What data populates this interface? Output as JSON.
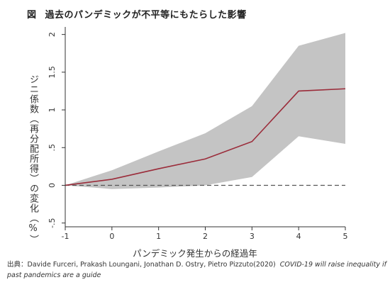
{
  "figure": {
    "number": "図",
    "title": "過去のパンデミックが不平等にもたらした影響"
  },
  "chart_data": {
    "type": "line",
    "x": [
      -1,
      0,
      1,
      2,
      3,
      4,
      5
    ],
    "series": [
      {
        "values": [
          0,
          0.08,
          0.22,
          0.35,
          0.58,
          1.25,
          1.28
        ]
      }
    ],
    "band": {
      "upper": [
        0,
        0.2,
        0.45,
        0.69,
        1.05,
        1.85,
        2.02
      ],
      "lower": [
        0,
        -0.05,
        -0.03,
        0.0,
        0.11,
        0.65,
        0.55
      ]
    },
    "baseline": 0,
    "xlabel": "パンデミック発生からの経過年",
    "ylabel": "ジニ係数（再分配所得）の変化（%）",
    "xticks": [
      "-1",
      "0",
      "1",
      "2",
      "3",
      "4",
      "5"
    ],
    "yticks": [
      "-.5",
      "0",
      ".5",
      "1",
      "1.5",
      "2"
    ],
    "ytick_values": [
      -0.5,
      0,
      0.5,
      1,
      1.5,
      2
    ],
    "xlim": [
      -1,
      5
    ],
    "ylim": [
      -0.55,
      2.1
    ],
    "colors": {
      "line": "#9b2c3a",
      "band": "#c4c4c4",
      "baseline": "#555555",
      "axis": "#333333"
    }
  },
  "source": {
    "label": "出典：",
    "authors": "Davide Furceri, Prakash Loungani, Jonathan D. Ostry, Pietro Pizzuto(2020)",
    "paper": "COVID-19 will raise inequality if past pandemics are a guide"
  }
}
